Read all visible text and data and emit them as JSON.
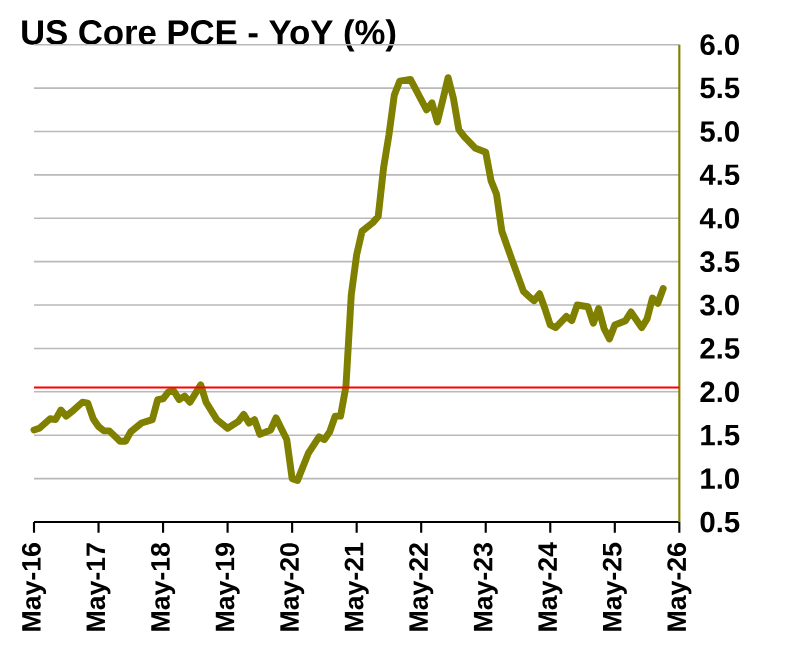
{
  "chart_data": {
    "type": "line",
    "title": "US Core PCE - YoY (%)",
    "x": [
      "2016-05",
      "2016-06",
      "2016-08",
      "2016-09",
      "2016-10",
      "2016-11",
      "2016-12",
      "2017-02",
      "2017-03",
      "2017-04",
      "2017-05",
      "2017-06",
      "2017-07",
      "2017-09",
      "2017-10",
      "2017-11",
      "2018-01",
      "2018-03",
      "2018-04",
      "2018-05",
      "2018-06",
      "2018-07",
      "2018-08",
      "2018-09",
      "2018-10",
      "2018-11",
      "2018-12",
      "2019-01",
      "2019-03",
      "2019-05",
      "2019-07",
      "2019-08",
      "2019-09",
      "2019-10",
      "2019-11",
      "2020-01",
      "2020-02",
      "2020-04",
      "2020-05",
      "2020-06",
      "2020-08",
      "2020-10",
      "2020-11",
      "2020-12",
      "2021-01",
      "2021-02",
      "2021-03",
      "2021-04",
      "2021-05",
      "2021-06",
      "2021-08",
      "2021-09",
      "2021-10",
      "2021-11",
      "2021-12",
      "2022-01",
      "2022-03",
      "2022-06",
      "2022-07",
      "2022-08",
      "2022-09",
      "2022-10",
      "2022-11",
      "2022-12",
      "2023-01",
      "2023-03",
      "2023-05",
      "2023-06",
      "2023-07",
      "2023-08",
      "2023-10",
      "2023-12",
      "2024-01",
      "2024-02",
      "2024-03",
      "2024-04",
      "2024-05",
      "2024-06",
      "2024-08",
      "2024-09",
      "2024-10",
      "2024-12",
      "2025-01",
      "2025-02",
      "2025-03",
      "2025-04",
      "2025-05",
      "2025-07",
      "2025-08",
      "2025-10",
      "2025-11",
      "2025-12",
      "2026-01",
      "2026-02"
    ],
    "series": [
      {
        "color": "#808000",
        "values": [
          1.56,
          1.58,
          1.69,
          1.68,
          1.79,
          1.72,
          1.77,
          1.88,
          1.87,
          1.69,
          1.6,
          1.55,
          1.55,
          1.43,
          1.43,
          1.54,
          1.64,
          1.68,
          1.91,
          1.92,
          2.0,
          2.01,
          1.91,
          1.95,
          1.88,
          1.98,
          2.08,
          1.88,
          1.68,
          1.58,
          1.66,
          1.74,
          1.64,
          1.68,
          1.51,
          1.56,
          1.7,
          1.45,
          1.0,
          0.98,
          1.29,
          1.48,
          1.45,
          1.54,
          1.72,
          1.72,
          2.06,
          3.12,
          3.58,
          3.85,
          3.95,
          4.02,
          4.58,
          4.96,
          5.42,
          5.58,
          5.6,
          5.25,
          5.33,
          5.11,
          5.36,
          5.62,
          5.38,
          5.02,
          4.94,
          4.81,
          4.76,
          4.43,
          4.28,
          3.85,
          3.5,
          3.16,
          3.1,
          3.05,
          3.13,
          2.96,
          2.77,
          2.74,
          2.87,
          2.82,
          3.0,
          2.98,
          2.79,
          2.96,
          2.73,
          2.61,
          2.77,
          2.82,
          2.92,
          2.74,
          2.84,
          3.08,
          3.02,
          3.19
        ]
      }
    ],
    "xlim": [
      "2016-05",
      "2026-05"
    ],
    "xticks": [
      {
        "value": "2016-05",
        "label": "May-16"
      },
      {
        "value": "2017-05",
        "label": "May-17"
      },
      {
        "value": "2018-05",
        "label": "May-18"
      },
      {
        "value": "2019-05",
        "label": "May-19"
      },
      {
        "value": "2020-05",
        "label": "May-20"
      },
      {
        "value": "2021-05",
        "label": "May-21"
      },
      {
        "value": "2022-05",
        "label": "May-22"
      },
      {
        "value": "2023-05",
        "label": "May-23"
      },
      {
        "value": "2024-05",
        "label": "May-24"
      },
      {
        "value": "2025-05",
        "label": "May-25"
      },
      {
        "value": "2026-05",
        "label": "May-26"
      }
    ],
    "ylim": [
      0.5,
      6.0
    ],
    "yticks": [
      {
        "value": 0.5,
        "label": "0.5"
      },
      {
        "value": 1.0,
        "label": "1.0"
      },
      {
        "value": 1.5,
        "label": "1.5"
      },
      {
        "value": 2.0,
        "label": "2.0"
      },
      {
        "value": 2.5,
        "label": "2.5"
      },
      {
        "value": 3.0,
        "label": "3.0"
      },
      {
        "value": 3.5,
        "label": "3.5"
      },
      {
        "value": 4.0,
        "label": "4.0"
      },
      {
        "value": 4.5,
        "label": "4.5"
      },
      {
        "value": 5.0,
        "label": "5.0"
      },
      {
        "value": 5.5,
        "label": "5.5"
      },
      {
        "value": 6.0,
        "label": "6.0"
      }
    ],
    "ref_lines": [
      {
        "axis": "y",
        "value": 2.05,
        "color": "#ff0000"
      }
    ],
    "grid": "y",
    "line_style": "solid"
  }
}
